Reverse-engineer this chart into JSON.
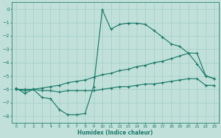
{
  "xlabel": "Humidex (Indice chaleur)",
  "background_color": "#c2e0da",
  "grid_color": "#9ecdc5",
  "line_color": "#1a7a6a",
  "xlim": [
    -0.5,
    23.5
  ],
  "ylim": [
    -8.5,
    0.5
  ],
  "xticks": [
    0,
    1,
    2,
    3,
    4,
    5,
    6,
    7,
    8,
    9,
    10,
    11,
    12,
    13,
    14,
    15,
    16,
    17,
    18,
    19,
    20,
    21,
    22,
    23
  ],
  "yticks": [
    0,
    -1,
    -2,
    -3,
    -4,
    -5,
    -6,
    -7,
    -8
  ],
  "line1_x": [
    0,
    1,
    2,
    3,
    4,
    5,
    6,
    7,
    8,
    9,
    10,
    11,
    12,
    13,
    14,
    15,
    16,
    17,
    18,
    19,
    20,
    21,
    22,
    23
  ],
  "line1_y": [
    -5.9,
    -6.3,
    -6.0,
    -6.6,
    -6.7,
    -7.5,
    -7.9,
    -7.9,
    -7.8,
    -5.8,
    -0.05,
    -1.5,
    -1.15,
    -1.05,
    -1.05,
    -1.15,
    -1.6,
    -2.1,
    -2.6,
    -2.8,
    -3.3,
    -4.1,
    -5.0,
    -5.2
  ],
  "line2_x": [
    0,
    1,
    2,
    3,
    4,
    5,
    6,
    7,
    8,
    9,
    10,
    11,
    12,
    13,
    14,
    15,
    16,
    17,
    18,
    19,
    20,
    21,
    22,
    23
  ],
  "line2_y": [
    -6.0,
    -6.0,
    -6.0,
    -5.9,
    -5.8,
    -5.7,
    -5.5,
    -5.4,
    -5.3,
    -5.1,
    -4.9,
    -4.8,
    -4.6,
    -4.5,
    -4.3,
    -4.2,
    -4.0,
    -3.9,
    -3.7,
    -3.5,
    -3.3,
    -3.3,
    -5.0,
    -5.2
  ],
  "line3_x": [
    0,
    1,
    2,
    3,
    4,
    5,
    6,
    7,
    8,
    9,
    10,
    11,
    12,
    13,
    14,
    15,
    16,
    17,
    18,
    19,
    20,
    21,
    22,
    23
  ],
  "line3_y": [
    -6.0,
    -6.1,
    -6.0,
    -6.1,
    -6.1,
    -6.2,
    -6.1,
    -6.1,
    -6.1,
    -6.1,
    -6.0,
    -5.9,
    -5.8,
    -5.8,
    -5.7,
    -5.6,
    -5.6,
    -5.5,
    -5.4,
    -5.3,
    -5.2,
    -5.2,
    -5.7,
    -5.7
  ]
}
